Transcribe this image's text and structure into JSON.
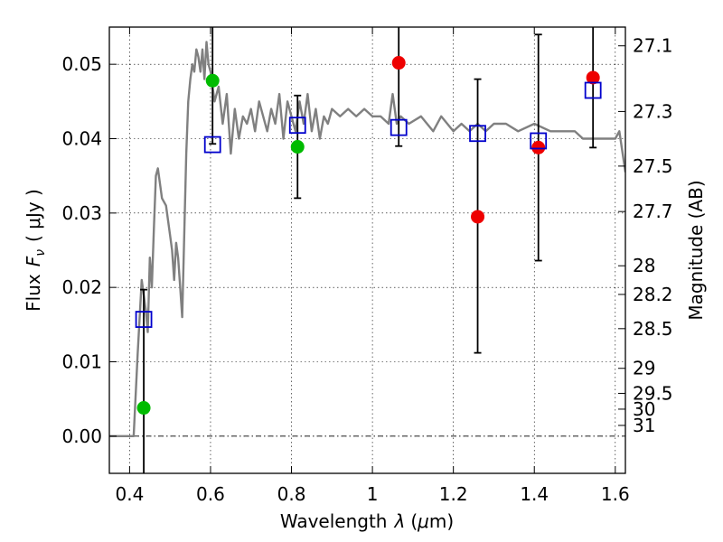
{
  "chart_data": {
    "type": "scatter",
    "title": "",
    "xlabel_text": "Wavelength",
    "xlabel_symbol": "λ",
    "xlabel_unit_open": "(",
    "xlabel_unit_mu": "μ",
    "xlabel_unit_rest": "m)",
    "ylabel_text": "Flux",
    "ylabel_symbol": "F",
    "ylabel_sub": "ν",
    "ylabel_unit": "( μJy )",
    "y2label": "Magnitude (AB)",
    "xlim": [
      0.35,
      1.625
    ],
    "ylim": [
      -0.005,
      0.055
    ],
    "grid": true,
    "x_ticks": [
      {
        "v": 0.4,
        "label": "0.4"
      },
      {
        "v": 0.6,
        "label": "0.6"
      },
      {
        "v": 0.8,
        "label": "0.8"
      },
      {
        "v": 1.0,
        "label": "1"
      },
      {
        "v": 1.2,
        "label": "1.2"
      },
      {
        "v": 1.4,
        "label": "1.4"
      },
      {
        "v": 1.6,
        "label": "1.6"
      }
    ],
    "y_ticks": [
      {
        "v": 0.0,
        "label": "0.00"
      },
      {
        "v": 0.01,
        "label": "0.01"
      },
      {
        "v": 0.02,
        "label": "0.02"
      },
      {
        "v": 0.03,
        "label": "0.03"
      },
      {
        "v": 0.04,
        "label": "0.04"
      },
      {
        "v": 0.05,
        "label": "0.05"
      }
    ],
    "mag_ticks": [
      {
        "v": 27.1,
        "label": "27.1"
      },
      {
        "v": 27.3,
        "label": "27.3"
      },
      {
        "v": 27.5,
        "label": "27.5"
      },
      {
        "v": 27.7,
        "label": "27.7"
      },
      {
        "v": 28,
        "label": "28"
      },
      {
        "v": 28.2,
        "label": "28.2"
      },
      {
        "v": 28.5,
        "label": "28.5"
      },
      {
        "v": 29,
        "label": "29"
      },
      {
        "v": 29.5,
        "label": "29.5"
      },
      {
        "v": 30,
        "label": "30"
      },
      {
        "v": 31,
        "label": "31"
      }
    ],
    "model_spectrum": {
      "color": "#808080",
      "x": [
        0.35,
        0.4,
        0.41,
        0.42,
        0.43,
        0.44,
        0.445,
        0.45,
        0.455,
        0.46,
        0.465,
        0.47,
        0.48,
        0.49,
        0.5,
        0.505,
        0.51,
        0.515,
        0.52,
        0.525,
        0.53,
        0.54,
        0.545,
        0.55,
        0.555,
        0.56,
        0.565,
        0.57,
        0.575,
        0.58,
        0.585,
        0.59,
        0.595,
        0.6,
        0.61,
        0.62,
        0.63,
        0.64,
        0.65,
        0.66,
        0.67,
        0.68,
        0.69,
        0.7,
        0.71,
        0.72,
        0.73,
        0.74,
        0.75,
        0.76,
        0.77,
        0.78,
        0.79,
        0.8,
        0.81,
        0.82,
        0.83,
        0.84,
        0.85,
        0.86,
        0.87,
        0.88,
        0.89,
        0.9,
        0.92,
        0.94,
        0.96,
        0.98,
        1.0,
        1.02,
        1.04,
        1.05,
        1.06,
        1.07,
        1.09,
        1.12,
        1.15,
        1.17,
        1.2,
        1.22,
        1.24,
        1.26,
        1.28,
        1.3,
        1.33,
        1.36,
        1.4,
        1.44,
        1.48,
        1.5,
        1.52,
        1.55,
        1.57,
        1.6,
        1.61,
        1.625
      ],
      "y": [
        0.0,
        0.0,
        0.0,
        0.011,
        0.021,
        0.017,
        0.014,
        0.024,
        0.02,
        0.028,
        0.035,
        0.036,
        0.032,
        0.031,
        0.027,
        0.025,
        0.021,
        0.026,
        0.024,
        0.02,
        0.016,
        0.038,
        0.045,
        0.048,
        0.05,
        0.049,
        0.052,
        0.051,
        0.049,
        0.052,
        0.048,
        0.053,
        0.05,
        0.049,
        0.045,
        0.047,
        0.042,
        0.046,
        0.038,
        0.044,
        0.04,
        0.043,
        0.042,
        0.044,
        0.041,
        0.045,
        0.043,
        0.041,
        0.044,
        0.042,
        0.046,
        0.04,
        0.045,
        0.043,
        0.041,
        0.045,
        0.042,
        0.046,
        0.041,
        0.044,
        0.04,
        0.043,
        0.042,
        0.044,
        0.043,
        0.044,
        0.043,
        0.044,
        0.043,
        0.043,
        0.042,
        0.046,
        0.042,
        0.043,
        0.042,
        0.043,
        0.041,
        0.043,
        0.041,
        0.042,
        0.041,
        0.042,
        0.041,
        0.042,
        0.042,
        0.041,
        0.042,
        0.041,
        0.041,
        0.041,
        0.04,
        0.04,
        0.04,
        0.04,
        0.041,
        0.0355
      ]
    },
    "series": [
      {
        "marker": "circle",
        "color": "#00bb00",
        "points": [
          {
            "x": 0.435,
            "y": 0.0038
          },
          {
            "x": 0.605,
            "y": 0.0478
          },
          {
            "x": 0.815,
            "y": 0.0389
          }
        ]
      },
      {
        "marker": "circle",
        "color": "#ee0000",
        "points": [
          {
            "x": 1.065,
            "y": 0.0502
          },
          {
            "x": 1.26,
            "y": 0.0295
          },
          {
            "x": 1.41,
            "y": 0.0388
          },
          {
            "x": 1.545,
            "y": 0.0482
          }
        ]
      },
      {
        "marker": "square-open",
        "color": "#0000cc",
        "points": [
          {
            "x": 0.435,
            "y": 0.0157,
            "ylo": -0.006,
            "yhi": 0.0197
          },
          {
            "x": 0.605,
            "y": 0.0392,
            "ylo": 0.0393,
            "yhi": 0.056
          },
          {
            "x": 0.815,
            "y": 0.0418,
            "ylo": 0.032,
            "yhi": 0.0458
          },
          {
            "x": 1.065,
            "y": 0.0415,
            "ylo": 0.039,
            "yhi": 0.056
          },
          {
            "x": 1.26,
            "y": 0.0407,
            "ylo": 0.0112,
            "yhi": 0.048
          },
          {
            "x": 1.41,
            "y": 0.0397,
            "ylo": 0.0236,
            "yhi": 0.054
          },
          {
            "x": 1.545,
            "y": 0.0465,
            "ylo": 0.0388,
            "yhi": 0.056
          }
        ]
      }
    ]
  }
}
